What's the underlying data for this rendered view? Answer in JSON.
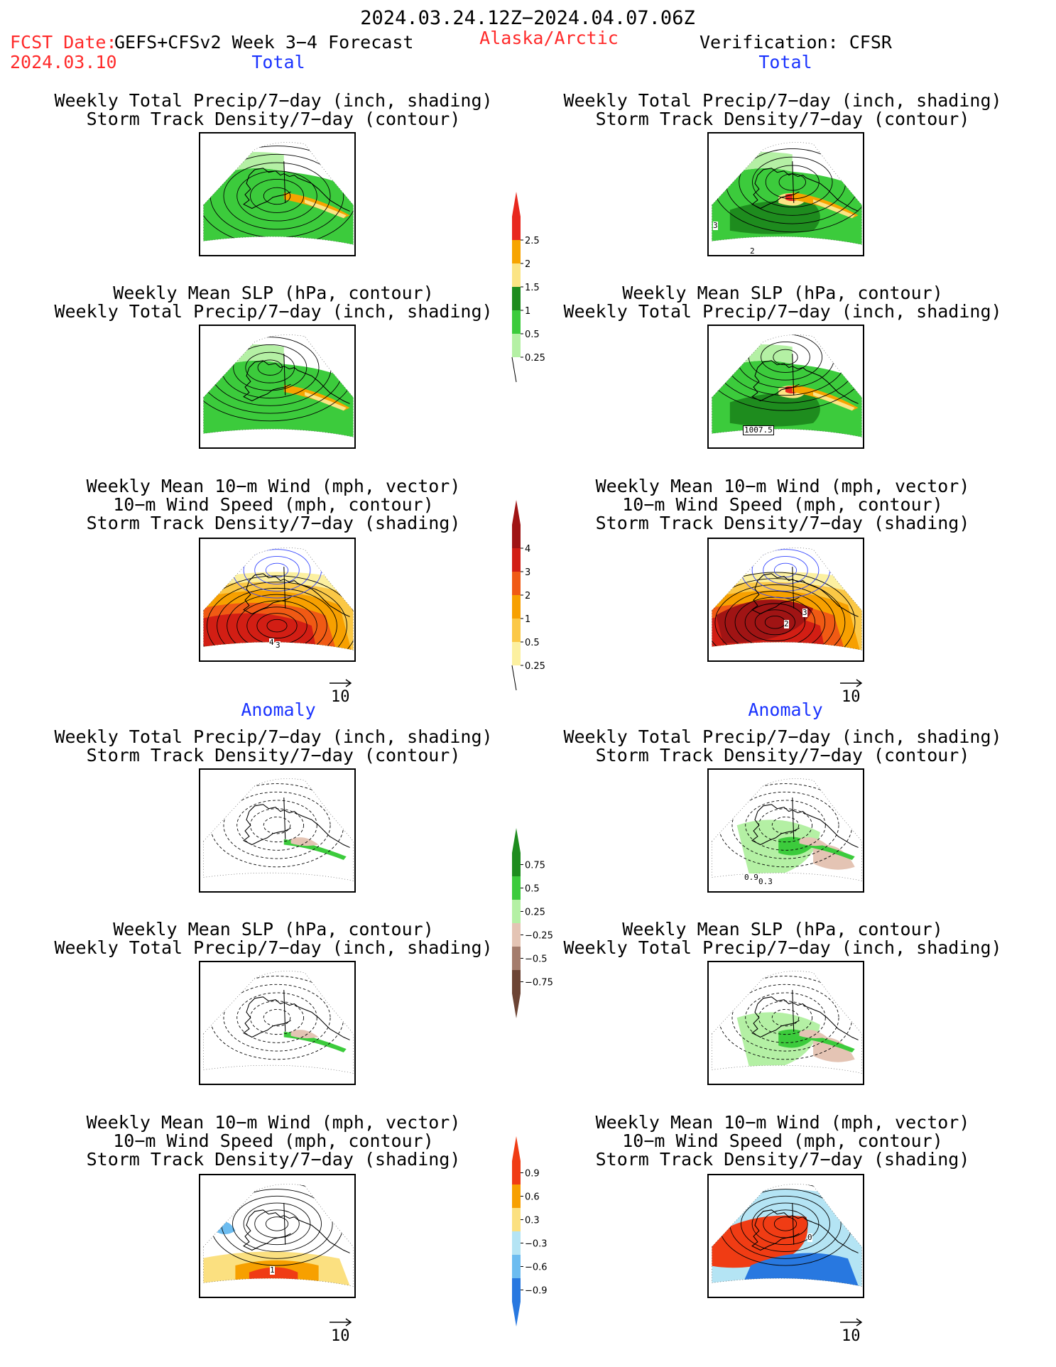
{
  "header": {
    "date_range": "2024.03.24.12Z−2024.04.07.06Z",
    "fcst_label": "FCST Date:",
    "model": "GEFS+CFSv2 Week 3−4 Forecast",
    "fcst_date": "2024.03.10",
    "region": "Alaska/Arctic",
    "verification": "Verification: CFSR"
  },
  "sections": {
    "total": "Total",
    "anomaly": "Anomaly"
  },
  "panel_titles": {
    "precip_storm": [
      "Weekly Total Precip/7−day (inch, shading)",
      "Storm Track Density/7−day (contour)"
    ],
    "slp_precip": [
      "Weekly Mean SLP (hPa, contour)",
      "Weekly Total Precip/7−day (inch, shading)"
    ],
    "wind_storm": [
      "Weekly Mean 10−m Wind (mph, vector)",
      "10−m Wind Speed (mph, contour)",
      "Storm Track Density/7−day (shading)"
    ]
  },
  "map_labels": {
    "right_precip_storm_total": [
      "3",
      "2"
    ],
    "right_slp_total": [
      "1007.5"
    ],
    "left_wind_total": [
      "4",
      "3"
    ],
    "right_wind_total": [
      "2",
      "3"
    ],
    "right_precip_storm_anom": [
      "0.9",
      "0.3"
    ],
    "left_wind_anom": [
      "1"
    ],
    "right_wind_anom": [
      "0"
    ]
  },
  "vector_ref": "10",
  "colorbars": {
    "precip_total": {
      "labels": [
        "2.5",
        "2",
        "1.5",
        "1",
        "0.5",
        "0.25"
      ],
      "colors": [
        "#e8281e",
        "#f7a400",
        "#fbe484",
        "#1e8c1e",
        "#3ccb3c",
        "#b4f0a4"
      ]
    },
    "storm_total": {
      "labels": [
        "4",
        "3",
        "2",
        "1",
        "0.5",
        "0.25"
      ],
      "colors": [
        "#a01414",
        "#d21e14",
        "#f05a14",
        "#f7a000",
        "#fbc846",
        "#fcf0a0"
      ]
    },
    "precip_anom": {
      "labels": [
        "0.75",
        "0.5",
        "0.25",
        "−0.25",
        "−0.5",
        "−0.75"
      ],
      "colors": [
        "#1e8c1e",
        "#3ccb3c",
        "#b4f0a4",
        "#e4c4b4",
        "#a47c6c",
        "#6c4434"
      ]
    },
    "storm_anom": {
      "labels": [
        "0.9",
        "0.6",
        "0.3",
        "−0.3",
        "−0.6",
        "−0.9"
      ],
      "colors": [
        "#f03c14",
        "#f7a000",
        "#fbe080",
        "#b4e4f4",
        "#6cbcf0",
        "#2878e0"
      ]
    }
  }
}
